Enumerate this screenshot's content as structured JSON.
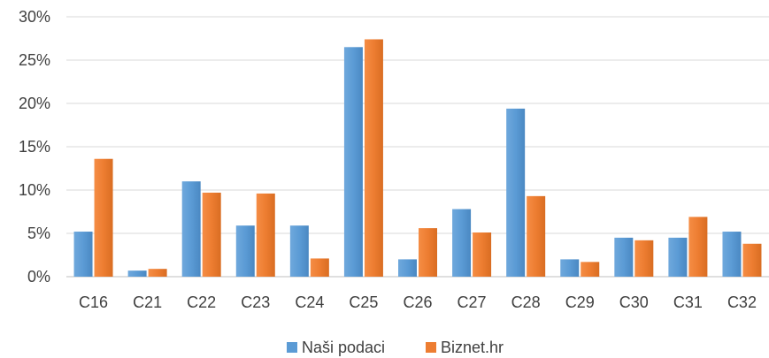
{
  "chart_data": {
    "type": "bar",
    "title": "",
    "xlabel": "",
    "ylabel": "",
    "categories": [
      "C16",
      "C21",
      "C22",
      "C23",
      "C24",
      "C25",
      "C26",
      "C27",
      "C28",
      "C29",
      "C30",
      "C31",
      "C32"
    ],
    "series": [
      {
        "name": "Naši podaci",
        "color": "#5B9BD5",
        "values": [
          5.2,
          0.7,
          11.0,
          5.9,
          5.9,
          26.5,
          2.0,
          7.8,
          19.4,
          2.0,
          4.5,
          4.5,
          5.2
        ]
      },
      {
        "name": "Biznet.hr",
        "color": "#ED7D31",
        "values": [
          13.6,
          0.9,
          9.7,
          9.6,
          2.1,
          27.4,
          5.6,
          5.1,
          9.3,
          1.7,
          4.2,
          6.9,
          3.8
        ]
      }
    ],
    "ylim": [
      0,
      30
    ],
    "yticks": [
      "0%",
      "5%",
      "10%",
      "15%",
      "20%",
      "25%",
      "30%"
    ],
    "grid": true,
    "legend": "bottom"
  }
}
